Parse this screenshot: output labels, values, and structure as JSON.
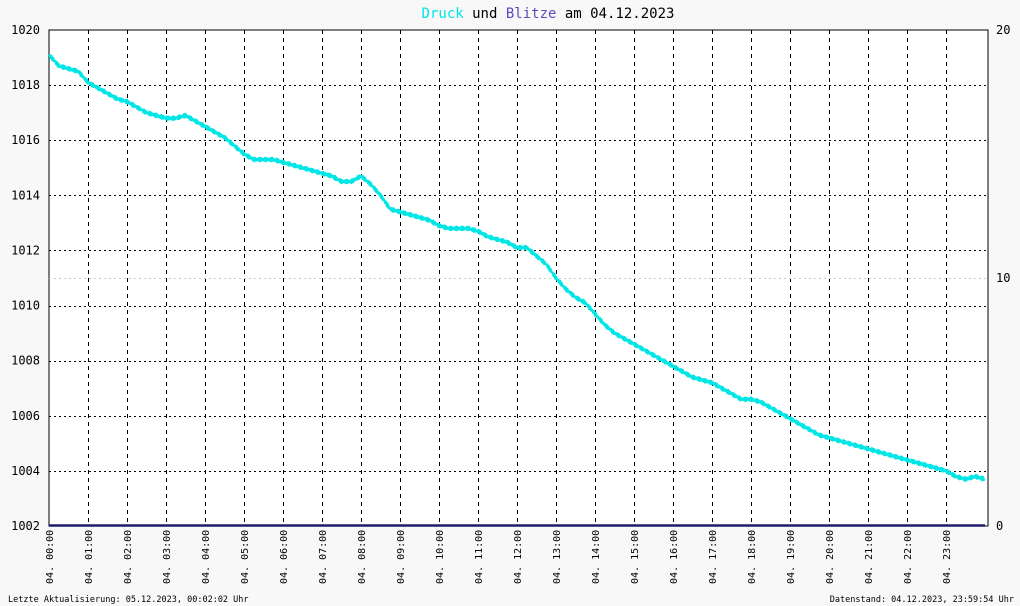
{
  "title": {
    "part1": "Druck",
    "part2": " und ",
    "part3": "Blitze",
    "part4": " am 04.12.2023"
  },
  "footer": {
    "left": "Letzte Aktualisierung: 05.12.2023, 00:02:02 Uhr",
    "right": "Datenstand: 04.12.2023, 23:59:54 Uhr"
  },
  "colors": {
    "druck": "#00e5e5",
    "blitze": "#5b4bbf",
    "blitze_line": "#1c1c6e",
    "background": "#ffffff",
    "grid": "#000000"
  },
  "chart_data": {
    "type": "line",
    "title": "Druck und Blitze am 04.12.2023",
    "xlabel": "",
    "ylabel": "",
    "x_ticks": [
      "04. 00:00",
      "04. 01:00",
      "04. 02:00",
      "04. 03:00",
      "04. 04:00",
      "04. 05:00",
      "04. 06:00",
      "04. 07:00",
      "04. 08:00",
      "04. 09:00",
      "04. 10:00",
      "04. 11:00",
      "04. 12:00",
      "04. 13:00",
      "04. 14:00",
      "04. 15:00",
      "04. 16:00",
      "04. 17:00",
      "04. 18:00",
      "04. 19:00",
      "04. 20:00",
      "04. 21:00",
      "04. 22:00",
      "04. 23:00"
    ],
    "y_left": {
      "min": 1002,
      "max": 1020,
      "ticks": [
        1002,
        1004,
        1006,
        1008,
        1010,
        1012,
        1014,
        1016,
        1018,
        1020
      ]
    },
    "y_right": {
      "min": 0,
      "max": 20,
      "ticks": [
        0,
        10,
        20
      ]
    },
    "grid": true,
    "series": [
      {
        "name": "Druck",
        "axis": "left",
        "x_hours": [
          0,
          0.25,
          0.5,
          0.75,
          1,
          1.25,
          1.5,
          1.75,
          2,
          2.25,
          2.5,
          2.75,
          3,
          3.25,
          3.5,
          3.75,
          4,
          4.25,
          4.5,
          4.75,
          5,
          5.25,
          5.5,
          5.75,
          6,
          6.25,
          6.5,
          6.75,
          7,
          7.25,
          7.5,
          7.75,
          8,
          8.25,
          8.5,
          8.75,
          9,
          9.25,
          9.5,
          9.75,
          10,
          10.25,
          10.5,
          10.75,
          11,
          11.25,
          11.5,
          11.75,
          12,
          12.25,
          12.5,
          12.75,
          13,
          13.25,
          13.5,
          13.75,
          14,
          14.25,
          14.5,
          14.75,
          15,
          15.25,
          15.5,
          15.75,
          16,
          16.25,
          16.5,
          16.75,
          17,
          17.25,
          17.5,
          17.75,
          18,
          18.25,
          18.5,
          18.75,
          19,
          19.25,
          19.5,
          19.75,
          20,
          20.25,
          20.5,
          20.75,
          21,
          21.25,
          21.5,
          21.75,
          22,
          22.25,
          22.5,
          22.75,
          23,
          23.25,
          23.5,
          23.75,
          23.99
        ],
        "values": [
          1019.1,
          1018.7,
          1018.6,
          1018.5,
          1018.1,
          1017.9,
          1017.7,
          1017.5,
          1017.4,
          1017.2,
          1017.0,
          1016.9,
          1016.8,
          1016.8,
          1016.9,
          1016.7,
          1016.5,
          1016.3,
          1016.1,
          1015.8,
          1015.5,
          1015.3,
          1015.3,
          1015.3,
          1015.2,
          1015.1,
          1015.0,
          1014.9,
          1014.8,
          1014.7,
          1014.5,
          1014.5,
          1014.7,
          1014.4,
          1014.0,
          1013.5,
          1013.4,
          1013.3,
          1013.2,
          1013.1,
          1012.9,
          1012.8,
          1012.8,
          1012.8,
          1012.7,
          1012.5,
          1012.4,
          1012.3,
          1012.1,
          1012.1,
          1011.8,
          1011.5,
          1011.0,
          1010.6,
          1010.3,
          1010.1,
          1009.7,
          1009.3,
          1009.0,
          1008.8,
          1008.6,
          1008.4,
          1008.2,
          1008.0,
          1007.8,
          1007.6,
          1007.4,
          1007.3,
          1007.2,
          1007.0,
          1006.8,
          1006.6,
          1006.6,
          1006.5,
          1006.3,
          1006.1,
          1005.9,
          1005.7,
          1005.5,
          1005.3,
          1005.2,
          1005.1,
          1005.0,
          1004.9,
          1004.8,
          1004.7,
          1004.6,
          1004.5,
          1004.4,
          1004.3,
          1004.2,
          1004.1,
          1004.0,
          1003.8,
          1003.7,
          1003.8,
          1003.7
        ]
      },
      {
        "name": "Blitze",
        "axis": "right",
        "x_hours": [
          0,
          24
        ],
        "values": [
          0,
          0
        ]
      }
    ]
  }
}
